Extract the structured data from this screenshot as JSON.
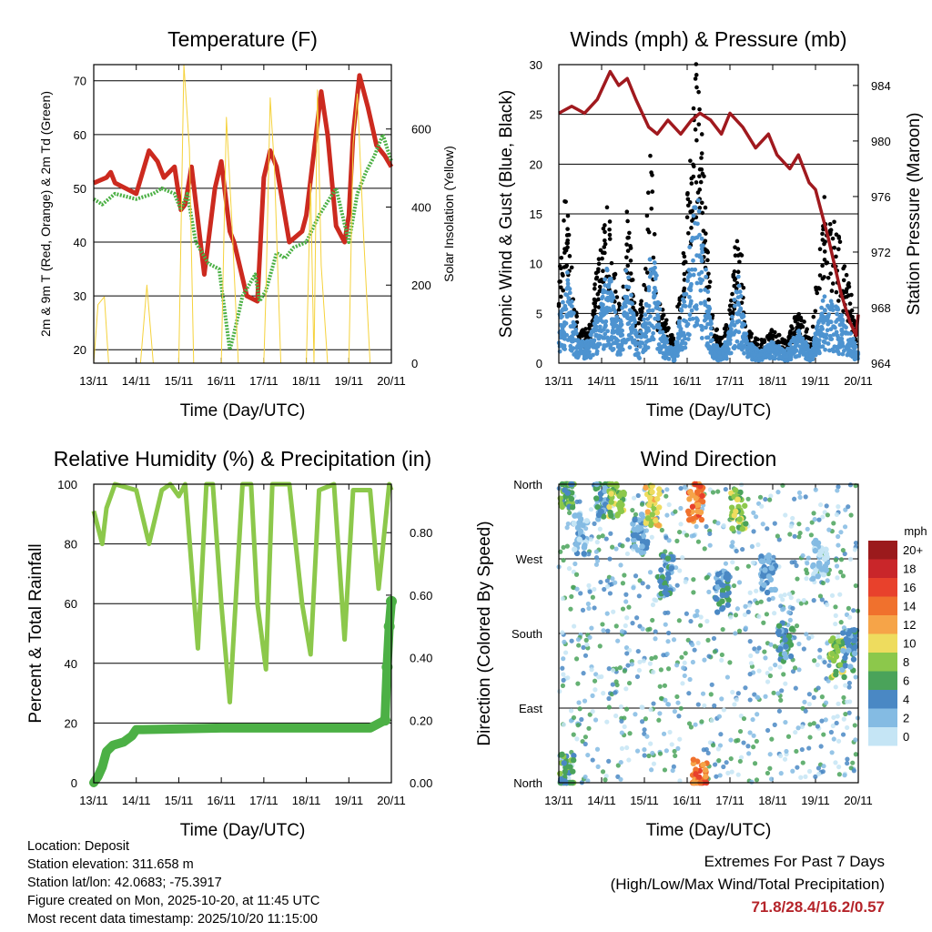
{
  "chart_data": [
    {
      "type": "line",
      "title": "Temperature (F)",
      "xlabel": "Time (Day/UTC)",
      "ylabel": "2m & 9m T (Red, Orange) & 2m Td (Green)",
      "y2label": "Solar Insolation (Yellow)",
      "x_ticks": [
        "13/11",
        "14/11",
        "15/11",
        "16/11",
        "17/11",
        "18/11",
        "19/11",
        "20/11"
      ],
      "xlim": [
        0,
        7
      ],
      "ylim": [
        17.5,
        73
      ],
      "y_ticks": [
        20,
        30,
        40,
        50,
        60,
        70
      ],
      "y2lim": [
        0,
        765
      ],
      "y2_ticks": [
        0,
        200,
        400,
        600
      ],
      "series": [
        {
          "name": "2m T",
          "color": "#cc2a1f",
          "x": [
            0,
            0.3,
            0.4,
            0.5,
            1.0,
            1.3,
            1.5,
            1.65,
            1.9,
            2.05,
            2.15,
            2.3,
            2.6,
            2.85,
            3.0,
            3.2,
            3.3,
            3.6,
            3.85,
            4.0,
            4.15,
            4.3,
            4.6,
            4.9,
            5.0,
            5.35,
            5.5,
            5.7,
            5.9,
            6.0,
            6.1,
            6.25,
            6.45,
            6.65,
            6.85,
            7.0
          ],
          "values": [
            51,
            52,
            53,
            51,
            49,
            57,
            55,
            52,
            54,
            46,
            47,
            54,
            34,
            50,
            55,
            42,
            40,
            30,
            29,
            52,
            57,
            54,
            40,
            42,
            45,
            68,
            60,
            43,
            40,
            45,
            60,
            71,
            65,
            58,
            56,
            54
          ]
        },
        {
          "name": "2m Td",
          "color": "#4cb045",
          "x": [
            0,
            0.2,
            0.5,
            1.0,
            1.4,
            1.6,
            1.9,
            2.05,
            2.2,
            2.4,
            2.7,
            2.95,
            3.2,
            3.3,
            3.5,
            3.8,
            3.9,
            4.05,
            4.3,
            4.5,
            4.7,
            5.0,
            5.3,
            5.7,
            6.0,
            6.2,
            6.4,
            6.6,
            6.8,
            7.0
          ],
          "values": [
            48,
            47,
            49,
            48,
            49,
            50,
            49,
            46,
            49,
            40,
            36,
            35,
            20,
            23,
            30,
            34,
            29,
            31,
            38,
            37,
            39,
            40,
            45,
            50,
            40,
            49,
            53,
            56,
            60,
            55
          ]
        },
        {
          "name": "Solar Insolation",
          "axis": "y2",
          "color": "#f5d23c",
          "x": [
            0,
            0.1,
            0.25,
            0.35,
            1.1,
            1.25,
            1.4,
            2.0,
            2.12,
            2.25,
            2.35,
            3.0,
            3.12,
            3.25,
            3.4,
            4.0,
            4.05,
            4.15,
            4.25,
            4.4,
            5.0,
            5.1,
            5.18,
            5.26,
            5.35,
            5.5,
            6.0,
            6.1,
            6.2,
            6.35,
            6.5
          ],
          "values": [
            0,
            150,
            170,
            0,
            0,
            200,
            0,
            0,
            765,
            550,
            0,
            0,
            630,
            360,
            0,
            0,
            180,
            680,
            500,
            0,
            0,
            460,
            0,
            700,
            250,
            0,
            0,
            560,
            690,
            320,
            0
          ]
        }
      ]
    },
    {
      "type": "line",
      "title": "Winds (mph) & Pressure (mb)",
      "xlabel": "Time (Day/UTC)",
      "ylabel": "Sonic Wind & Gust (Blue, Black)",
      "y2label": "Station Pressure (Maroon)",
      "x_ticks": [
        "13/11",
        "14/11",
        "15/11",
        "16/11",
        "17/11",
        "18/11",
        "19/11",
        "20/11"
      ],
      "xlim": [
        0,
        7
      ],
      "ylim": [
        0,
        30
      ],
      "y_ticks": [
        0,
        5,
        10,
        15,
        20,
        25,
        30
      ],
      "y2lim": [
        964,
        985.5
      ],
      "y2_ticks": [
        964,
        968,
        972,
        976,
        980,
        984
      ],
      "series": [
        {
          "name": "Sonic Wind",
          "color": "#4d93d0",
          "x": [
            0,
            0.2,
            0.45,
            0.7,
            1.0,
            1.15,
            1.4,
            1.6,
            1.85,
            2.0,
            2.2,
            2.4,
            2.7,
            3.0,
            3.2,
            3.35,
            3.6,
            3.8,
            4.0,
            4.2,
            4.4,
            4.7,
            5.0,
            5.3,
            5.6,
            5.9,
            6.2,
            6.5,
            6.8,
            7.0
          ],
          "values": [
            4,
            8,
            2,
            2,
            6,
            9,
            3,
            9,
            2,
            4,
            12,
            3,
            1,
            8,
            16,
            12,
            2,
            1,
            3,
            8,
            2,
            1,
            2,
            1,
            3,
            1,
            6,
            5,
            3,
            1
          ]
        },
        {
          "name": "Gust",
          "color": "#000000",
          "x": [
            0,
            0.15,
            0.45,
            0.7,
            1.0,
            1.15,
            1.4,
            1.6,
            1.85,
            2.0,
            2.15,
            2.3,
            2.7,
            3.0,
            3.2,
            3.35,
            3.6,
            3.8,
            4.0,
            4.2,
            4.4,
            4.7,
            5.0,
            5.3,
            5.6,
            5.9,
            6.2,
            6.5,
            6.8,
            7.0
          ],
          "values": [
            7,
            16,
            3,
            3,
            12,
            14,
            5,
            14,
            3,
            8,
            20,
            6,
            2,
            15,
            27,
            20,
            4,
            2,
            5,
            14,
            3,
            2,
            3,
            2,
            5,
            2,
            15,
            12,
            7,
            2
          ]
        },
        {
          "name": "Station Pressure",
          "axis": "y2",
          "color": "#a0191e",
          "x": [
            0,
            0.3,
            0.6,
            0.9,
            1.2,
            1.4,
            1.6,
            1.8,
            2.1,
            2.3,
            2.55,
            2.85,
            3.1,
            3.3,
            3.55,
            3.8,
            4.0,
            4.3,
            4.6,
            4.9,
            5.1,
            5.4,
            5.6,
            5.85,
            6.0,
            6.3,
            6.6,
            6.8,
            6.95,
            7.0
          ],
          "values": [
            982,
            982.5,
            982,
            983,
            985,
            984,
            984.5,
            983,
            981,
            980.5,
            981.5,
            980.5,
            981.5,
            982,
            981.5,
            980.5,
            982,
            981,
            979.5,
            980.5,
            979,
            978,
            979,
            977,
            976.5,
            973,
            969,
            967,
            966,
            967.5
          ]
        }
      ]
    },
    {
      "type": "line",
      "title": "Relative Humidity (%) & Precipitation (in)",
      "xlabel": "Time (Day/UTC)",
      "ylabel": "Percent & Total Rainfall",
      "x_ticks": [
        "13/11",
        "14/11",
        "15/11",
        "16/11",
        "17/11",
        "18/11",
        "19/11",
        "20/11"
      ],
      "xlim": [
        0,
        7
      ],
      "ylim": [
        0,
        100
      ],
      "y_ticks": [
        0,
        20,
        40,
        60,
        80,
        100
      ],
      "y2lim": [
        0,
        0.955
      ],
      "y2_ticks": [
        "0.00",
        "0.20",
        "0.40",
        "0.60",
        "0.80"
      ],
      "series": [
        {
          "name": "Relative Humidity",
          "color": "#8cc84b",
          "x": [
            0,
            0.2,
            0.3,
            0.5,
            1.0,
            1.3,
            1.6,
            1.8,
            2.0,
            2.15,
            2.45,
            2.65,
            2.8,
            3.0,
            3.2,
            3.5,
            3.7,
            3.85,
            4.05,
            4.2,
            4.6,
            4.9,
            5.1,
            5.3,
            5.65,
            5.9,
            6.1,
            6.5,
            6.7,
            6.95,
            7.0
          ],
          "values": [
            91,
            80,
            92,
            100,
            98,
            80,
            98,
            100,
            96,
            100,
            45,
            100,
            100,
            60,
            27,
            100,
            100,
            60,
            38,
            100,
            100,
            60,
            43,
            98,
            100,
            48,
            98,
            98,
            65,
            100,
            98
          ]
        },
        {
          "name": "Total Rainfall",
          "axis": "y2",
          "color": "#4cb045",
          "x": [
            0,
            0.1,
            0.2,
            0.3,
            0.45,
            0.7,
            0.9,
            1.0,
            1.15,
            3.0,
            5.0,
            6.5,
            6.85,
            6.9,
            6.95,
            7.0
          ],
          "values": [
            0,
            0.02,
            0.05,
            0.1,
            0.12,
            0.13,
            0.15,
            0.17,
            0.17,
            0.175,
            0.175,
            0.175,
            0.2,
            0.37,
            0.5,
            0.58
          ]
        }
      ]
    },
    {
      "type": "scatter",
      "title": "Wind Direction",
      "xlabel": "Time (Day/UTC)",
      "ylabel": "Direction (Colored By Speed)",
      "x_ticks": [
        "13/11",
        "14/11",
        "15/11",
        "16/11",
        "17/11",
        "18/11",
        "19/11",
        "20/11"
      ],
      "xlim": [
        0,
        7
      ],
      "y_categories": [
        "North",
        "East",
        "South",
        "West",
        "North"
      ],
      "ylim": [
        0,
        360
      ],
      "colorbar": {
        "title": "mph",
        "labels": [
          "20+",
          "18",
          "16",
          "14",
          "12",
          "10",
          "8",
          "6",
          "4",
          "2",
          "0"
        ],
        "colors": [
          "#9b1a1c",
          "#c9262a",
          "#e8412c",
          "#f0712d",
          "#f6a448",
          "#eedc5e",
          "#8cc84b",
          "#4aa35a",
          "#4a88c4",
          "#84bbe3",
          "#c5e5f5"
        ]
      },
      "clusters": [
        {
          "x": 0.2,
          "dir": 355,
          "speed": 6
        },
        {
          "x": 0.5,
          "dir": 300,
          "speed": 2
        },
        {
          "x": 1.0,
          "dir": 340,
          "speed": 4
        },
        {
          "x": 1.35,
          "dir": 345,
          "speed": 8
        },
        {
          "x": 1.9,
          "dir": 300,
          "speed": 3
        },
        {
          "x": 2.2,
          "dir": 335,
          "speed": 10
        },
        {
          "x": 2.5,
          "dir": 250,
          "speed": 4
        },
        {
          "x": 3.2,
          "dir": 340,
          "speed": 14
        },
        {
          "x": 3.8,
          "dir": 230,
          "speed": 4
        },
        {
          "x": 4.2,
          "dir": 330,
          "speed": 8
        },
        {
          "x": 4.9,
          "dir": 250,
          "speed": 3
        },
        {
          "x": 5.3,
          "dir": 170,
          "speed": 4
        },
        {
          "x": 6.1,
          "dir": 270,
          "speed": 1
        },
        {
          "x": 6.5,
          "dir": 150,
          "speed": 8
        },
        {
          "x": 6.8,
          "dir": 160,
          "speed": 4
        },
        {
          "x": 0.2,
          "dir": 10,
          "speed": 6
        },
        {
          "x": 3.3,
          "dir": 5,
          "speed": 14
        }
      ]
    }
  ],
  "info": {
    "location": "Location: Deposit",
    "elevation": "Station elevation: 311.658 m",
    "latlon": "Station lat/lon: 42.0683; -75.3917",
    "created": "Figure created on Mon, 2025-10-20, at 11:45 UTC",
    "timestamp": "Most recent data timestamp: 2025/10/20 11:15:00"
  },
  "extremes": {
    "title": "Extremes For Past 7 Days",
    "subtitle": "(High/Low/Max Wind/Total Precipitation)",
    "values": "71.8/28.4/16.2/0.57"
  }
}
